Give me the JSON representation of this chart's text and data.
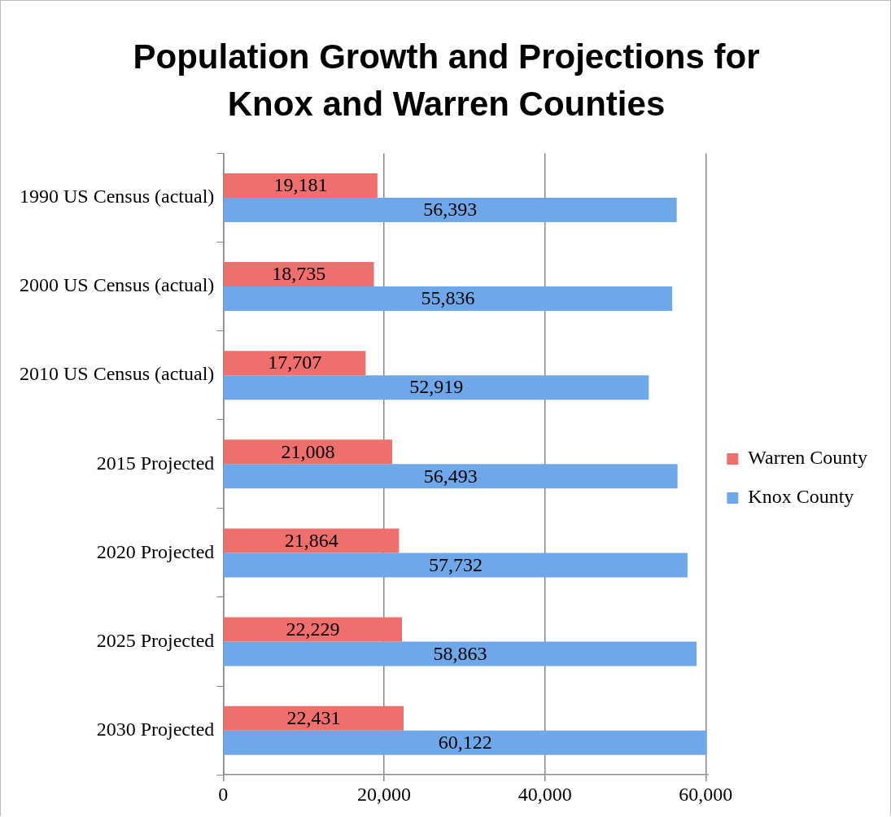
{
  "chart_data": {
    "type": "bar",
    "orientation": "horizontal",
    "title": "Population Growth and Projections for Knox and Warren Counties",
    "categories": [
      "1990 US Census (actual)",
      "2000 US Census (actual)",
      "2010 US Census (actual)",
      "2015 Projected",
      "2020 Projected",
      "2025 Projected",
      "2030 Projected"
    ],
    "series": [
      {
        "name": "Warren County",
        "color": "#ee6f6c",
        "values": [
          19181,
          18735,
          17707,
          21008,
          21864,
          22229,
          22431
        ],
        "value_labels": [
          "19,181",
          "18,735",
          "17,707",
          "21,008",
          "21,864",
          "22,229",
          "22,431"
        ]
      },
      {
        "name": "Knox County",
        "color": "#6fa8ea",
        "values": [
          56393,
          55836,
          52919,
          56493,
          57732,
          58863,
          60122
        ],
        "value_labels": [
          "56,393",
          "55,836",
          "52,919",
          "56,493",
          "57,732",
          "58,863",
          "60,122"
        ]
      }
    ],
    "xlim": [
      0,
      60200
    ],
    "xticks": [
      0,
      {
        "value": 20000,
        "label": "20,000"
      },
      {
        "value": 40000,
        "label": "40,000"
      },
      {
        "value": 60000,
        "label": "60,000"
      }
    ],
    "grid": "x",
    "legend": "right"
  }
}
